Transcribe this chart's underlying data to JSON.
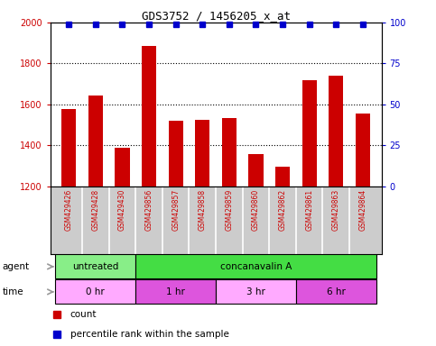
{
  "title": "GDS3752 / 1456205_x_at",
  "samples": [
    "GSM429426",
    "GSM429428",
    "GSM429430",
    "GSM429856",
    "GSM429857",
    "GSM429858",
    "GSM429859",
    "GSM429860",
    "GSM429862",
    "GSM429861",
    "GSM429863",
    "GSM429864"
  ],
  "counts": [
    1580,
    1642,
    1390,
    1885,
    1520,
    1525,
    1535,
    1357,
    1295,
    1720,
    1740,
    1555
  ],
  "percentile_rank": 99,
  "ylim_left": [
    1200,
    2000
  ],
  "ylim_right": [
    0,
    100
  ],
  "yticks_left": [
    1200,
    1400,
    1600,
    1800,
    2000
  ],
  "yticks_right": [
    0,
    25,
    50,
    75,
    100
  ],
  "bar_color": "#CC0000",
  "dot_color": "#0000CC",
  "agent_groups": [
    {
      "label": "untreated",
      "start": 0,
      "end": 3,
      "color": "#88EE88"
    },
    {
      "label": "concanavalin A",
      "start": 3,
      "end": 12,
      "color": "#44DD44"
    }
  ],
  "time_groups": [
    {
      "label": "0 hr",
      "start": 0,
      "end": 3,
      "color": "#FFAAFF"
    },
    {
      "label": "1 hr",
      "start": 3,
      "end": 6,
      "color": "#DD55DD"
    },
    {
      "label": "3 hr",
      "start": 6,
      "end": 9,
      "color": "#FFAAFF"
    },
    {
      "label": "6 hr",
      "start": 9,
      "end": 12,
      "color": "#DD55DD"
    }
  ],
  "grid_yticks": [
    1400,
    1600,
    1800
  ],
  "sample_bg": "#CCCCCC",
  "background": "#FFFFFF",
  "left_tick_color": "#CC0000",
  "right_tick_color": "#0000CC",
  "legend_count_label": "count",
  "legend_pct_label": "percentile rank within the sample",
  "agent_label": "agent",
  "time_label": "time"
}
